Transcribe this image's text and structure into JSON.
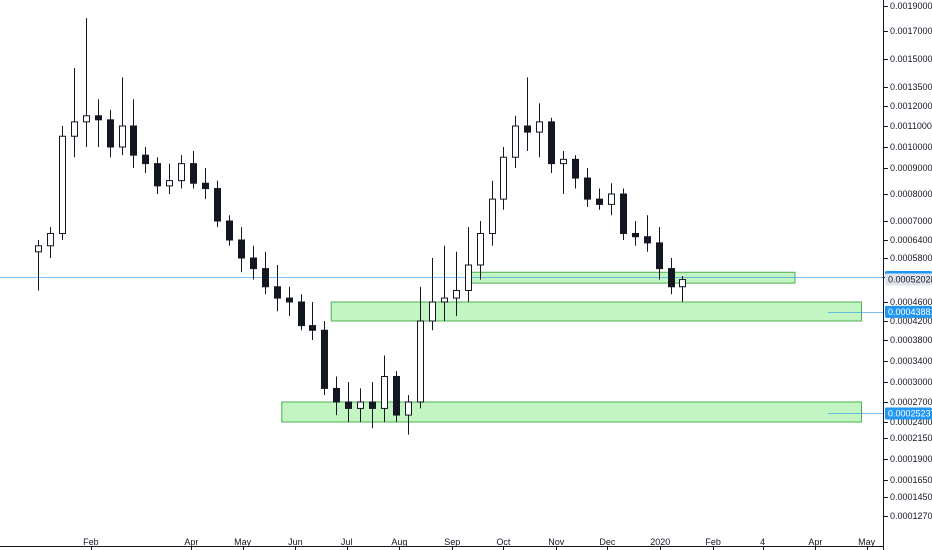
{
  "chart_data": {
    "type": "candlestick",
    "x_ticks": [
      "Feb",
      "Apr",
      "May",
      "Jun",
      "Jul",
      "Aug",
      "Sep",
      "Oct",
      "Nov",
      "Dec",
      "2020",
      "Feb",
      "4",
      "Apr",
      "May"
    ],
    "y_ticks": [
      "0.00190000",
      "0.00170000",
      "0.00150000",
      "0.00135000",
      "0.00120000",
      "0.00110000",
      "0.00100000",
      "0.00090000",
      "0.00080000",
      "0.00070000",
      "0.00064000",
      "0.00058000",
      "0.00052735",
      "0.00046000",
      "0.00042000",
      "0.00038000",
      "0.00034000",
      "0.00030000",
      "0.00027000",
      "0.00024000",
      "0.00021500",
      "0.00019000",
      "0.00016500",
      "0.00014500",
      "0.00012700"
    ],
    "price_tags": [
      {
        "label": "0.00052735",
        "value": 0.00052735,
        "color": "#2196f3",
        "text_color": "#ffffff",
        "style": "line"
      },
      {
        "label": "0.00052028",
        "value": 0.00052028,
        "color": "#e0e3eb",
        "text_color": "#131722",
        "style": "plain"
      },
      {
        "label": "0.00043881",
        "value": 0.00043881,
        "color": "#2196f3",
        "text_color": "#ffffff",
        "style": "line"
      },
      {
        "label": "0.00025237",
        "value": 0.00025237,
        "color": "#2196f3",
        "text_color": "#ffffff",
        "style": "line"
      }
    ],
    "zones": [
      {
        "name": "zone-1",
        "from": "2019-09-10",
        "to": "2020-03-20",
        "low": 0.00051,
        "high": 0.00054,
        "color": "#b7f3b7",
        "border": "#4caf50"
      },
      {
        "name": "zone-2",
        "from": "2019-06-22",
        "to": "2020-04-28",
        "low": 0.00042,
        "high": 0.00046,
        "color": "#b7f3b7",
        "border": "#4caf50"
      },
      {
        "name": "zone-3",
        "from": "2019-05-24",
        "to": "2020-04-28",
        "low": 0.00024,
        "high": 0.00027,
        "color": "#b7f3b7",
        "border": "#4caf50"
      }
    ],
    "candles": [
      {
        "date": "2019-01-01",
        "o": 0.0006,
        "h": 0.00064,
        "l": 0.00049,
        "c": 0.00062
      },
      {
        "date": "2019-01-08",
        "o": 0.00062,
        "h": 0.00068,
        "l": 0.00058,
        "c": 0.00066
      },
      {
        "date": "2019-01-15",
        "o": 0.00066,
        "h": 0.0011,
        "l": 0.00064,
        "c": 0.00105
      },
      {
        "date": "2019-01-22",
        "o": 0.00105,
        "h": 0.00145,
        "l": 0.00095,
        "c": 0.00112
      },
      {
        "date": "2019-01-29",
        "o": 0.00112,
        "h": 0.0018,
        "l": 0.001,
        "c": 0.00115
      },
      {
        "date": "2019-02-05",
        "o": 0.00115,
        "h": 0.00125,
        "l": 0.001,
        "c": 0.00113
      },
      {
        "date": "2019-02-12",
        "o": 0.00113,
        "h": 0.00118,
        "l": 0.00095,
        "c": 0.001
      },
      {
        "date": "2019-02-19",
        "o": 0.001,
        "h": 0.0014,
        "l": 0.00096,
        "c": 0.0011
      },
      {
        "date": "2019-02-26",
        "o": 0.0011,
        "h": 0.00125,
        "l": 0.0009,
        "c": 0.00096
      },
      {
        "date": "2019-03-05",
        "o": 0.00096,
        "h": 0.001,
        "l": 0.00088,
        "c": 0.00092
      },
      {
        "date": "2019-03-12",
        "o": 0.00092,
        "h": 0.00095,
        "l": 0.0008,
        "c": 0.00083
      },
      {
        "date": "2019-03-19",
        "o": 0.00083,
        "h": 0.00092,
        "l": 0.0008,
        "c": 0.00085
      },
      {
        "date": "2019-03-26",
        "o": 0.00085,
        "h": 0.00096,
        "l": 0.00082,
        "c": 0.00092
      },
      {
        "date": "2019-04-02",
        "o": 0.00092,
        "h": 0.00098,
        "l": 0.00082,
        "c": 0.00084
      },
      {
        "date": "2019-04-09",
        "o": 0.00084,
        "h": 0.0009,
        "l": 0.00078,
        "c": 0.00082
      },
      {
        "date": "2019-04-16",
        "o": 0.00082,
        "h": 0.00085,
        "l": 0.00068,
        "c": 0.0007
      },
      {
        "date": "2019-04-23",
        "o": 0.0007,
        "h": 0.00072,
        "l": 0.00062,
        "c": 0.00064
      },
      {
        "date": "2019-04-30",
        "o": 0.00064,
        "h": 0.00068,
        "l": 0.00054,
        "c": 0.00058
      },
      {
        "date": "2019-05-07",
        "o": 0.00058,
        "h": 0.00062,
        "l": 0.00052,
        "c": 0.00055
      },
      {
        "date": "2019-05-14",
        "o": 0.00055,
        "h": 0.0006,
        "l": 0.00048,
        "c": 0.0005
      },
      {
        "date": "2019-05-21",
        "o": 0.0005,
        "h": 0.00056,
        "l": 0.00044,
        "c": 0.00047
      },
      {
        "date": "2019-05-28",
        "o": 0.00047,
        "h": 0.0005,
        "l": 0.00043,
        "c": 0.00046
      },
      {
        "date": "2019-06-04",
        "o": 0.00046,
        "h": 0.00048,
        "l": 0.0004,
        "c": 0.00041
      },
      {
        "date": "2019-06-11",
        "o": 0.00041,
        "h": 0.00046,
        "l": 0.00038,
        "c": 0.0004
      },
      {
        "date": "2019-06-18",
        "o": 0.0004,
        "h": 0.00042,
        "l": 0.00028,
        "c": 0.00029
      },
      {
        "date": "2019-06-25",
        "o": 0.00029,
        "h": 0.00031,
        "l": 0.00025,
        "c": 0.00027
      },
      {
        "date": "2019-07-02",
        "o": 0.00027,
        "h": 0.0003,
        "l": 0.00024,
        "c": 0.00026
      },
      {
        "date": "2019-07-09",
        "o": 0.00026,
        "h": 0.00029,
        "l": 0.00024,
        "c": 0.00027
      },
      {
        "date": "2019-07-16",
        "o": 0.00027,
        "h": 0.0003,
        "l": 0.00023,
        "c": 0.00026
      },
      {
        "date": "2019-07-23",
        "o": 0.00026,
        "h": 0.00035,
        "l": 0.00024,
        "c": 0.00031
      },
      {
        "date": "2019-07-30",
        "o": 0.00031,
        "h": 0.00032,
        "l": 0.00024,
        "c": 0.00025
      },
      {
        "date": "2019-08-06",
        "o": 0.00025,
        "h": 0.00028,
        "l": 0.00022,
        "c": 0.00027
      },
      {
        "date": "2019-08-13",
        "o": 0.00027,
        "h": 0.0005,
        "l": 0.00026,
        "c": 0.00042
      },
      {
        "date": "2019-08-20",
        "o": 0.00042,
        "h": 0.00058,
        "l": 0.0004,
        "c": 0.00046
      },
      {
        "date": "2019-08-27",
        "o": 0.00046,
        "h": 0.00062,
        "l": 0.00042,
        "c": 0.00047
      },
      {
        "date": "2019-09-03",
        "o": 0.00047,
        "h": 0.0006,
        "l": 0.00043,
        "c": 0.00049
      },
      {
        "date": "2019-09-10",
        "o": 0.00049,
        "h": 0.00068,
        "l": 0.00046,
        "c": 0.00056
      },
      {
        "date": "2019-09-17",
        "o": 0.00056,
        "h": 0.0007,
        "l": 0.00052,
        "c": 0.00066
      },
      {
        "date": "2019-09-24",
        "o": 0.00066,
        "h": 0.00085,
        "l": 0.00062,
        "c": 0.00078
      },
      {
        "date": "2019-10-01",
        "o": 0.00078,
        "h": 0.001,
        "l": 0.00074,
        "c": 0.00095
      },
      {
        "date": "2019-10-08",
        "o": 0.00095,
        "h": 0.00115,
        "l": 0.0009,
        "c": 0.0011
      },
      {
        "date": "2019-10-15",
        "o": 0.0011,
        "h": 0.0014,
        "l": 0.00098,
        "c": 0.00107
      },
      {
        "date": "2019-10-22",
        "o": 0.00107,
        "h": 0.00122,
        "l": 0.00095,
        "c": 0.00112
      },
      {
        "date": "2019-10-29",
        "o": 0.00112,
        "h": 0.00114,
        "l": 0.00088,
        "c": 0.00092
      },
      {
        "date": "2019-11-05",
        "o": 0.00092,
        "h": 0.00098,
        "l": 0.0008,
        "c": 0.00094
      },
      {
        "date": "2019-11-12",
        "o": 0.00094,
        "h": 0.00096,
        "l": 0.00082,
        "c": 0.00086
      },
      {
        "date": "2019-11-19",
        "o": 0.00086,
        "h": 0.0009,
        "l": 0.00075,
        "c": 0.00078
      },
      {
        "date": "2019-11-26",
        "o": 0.00078,
        "h": 0.00082,
        "l": 0.00074,
        "c": 0.00076
      },
      {
        "date": "2019-12-03",
        "o": 0.00076,
        "h": 0.00084,
        "l": 0.00072,
        "c": 0.0008
      },
      {
        "date": "2019-12-10",
        "o": 0.0008,
        "h": 0.00082,
        "l": 0.00064,
        "c": 0.00066
      },
      {
        "date": "2019-12-17",
        "o": 0.00066,
        "h": 0.0007,
        "l": 0.00062,
        "c": 0.00065
      },
      {
        "date": "2019-12-24",
        "o": 0.00065,
        "h": 0.00072,
        "l": 0.0006,
        "c": 0.00063
      },
      {
        "date": "2019-12-31",
        "o": 0.00063,
        "h": 0.00068,
        "l": 0.00052,
        "c": 0.00055
      },
      {
        "date": "2020-01-07",
        "o": 0.00055,
        "h": 0.00058,
        "l": 0.00048,
        "c": 0.0005
      },
      {
        "date": "2020-01-14",
        "o": 0.0005,
        "h": 0.00053,
        "l": 0.00046,
        "c": 0.00052
      }
    ]
  }
}
